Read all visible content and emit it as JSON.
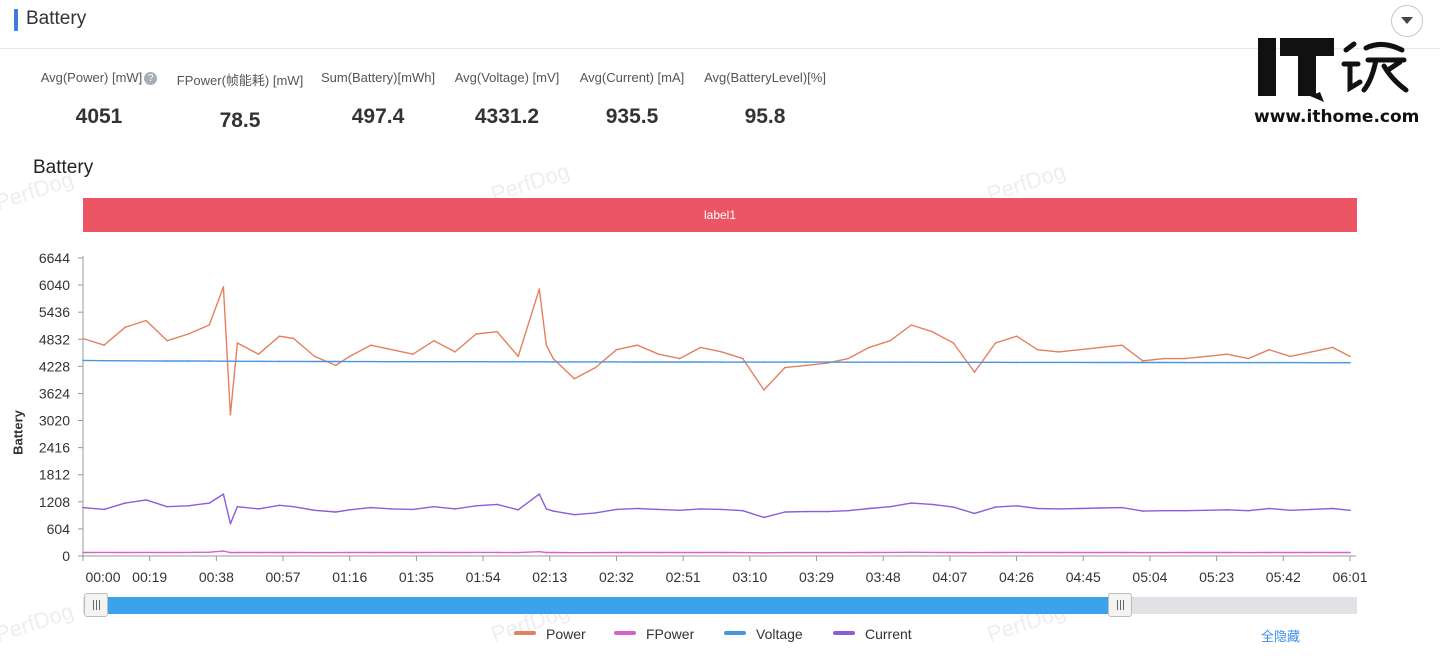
{
  "header": {
    "title": "Battery"
  },
  "stats": [
    {
      "label": "Avg(Power) [mW]",
      "value": "4051",
      "help": "?"
    },
    {
      "label": "FPower(帧能耗) [mW]",
      "value": "78.5"
    },
    {
      "label": "Sum(Battery)[mWh]",
      "value": "497.4"
    },
    {
      "label": "Avg(Voltage) [mV]",
      "value": "4331.2"
    },
    {
      "label": "Avg(Current) [mA]",
      "value": "935.5"
    },
    {
      "label": "Avg(BatteryLevel)[%]",
      "value": "95.8"
    }
  ],
  "logo": {
    "url_text": "www.ithome.com"
  },
  "watermark": "PerfDog",
  "chart_title": "Battery",
  "label_band": "label1",
  "hide_all_label": "全隐藏",
  "colors": {
    "power": "#e4805f",
    "fpower": "#d960c8",
    "voltage": "#4796e2",
    "current": "#8a5ed9",
    "label_band": "#ec5664",
    "slider_fill": "#3aa3ec",
    "accent": "#3d7bd9"
  },
  "chart_data": {
    "type": "line",
    "ylabel": "Battery",
    "ylim": [
      0,
      6644
    ],
    "y_ticks": [
      0,
      604,
      1208,
      1812,
      2416,
      3020,
      3624,
      4228,
      4832,
      5436,
      6040,
      6644
    ],
    "x_ticks": [
      "00:00",
      "00:19",
      "00:38",
      "00:57",
      "01:16",
      "01:35",
      "01:54",
      "02:13",
      "02:32",
      "02:51",
      "03:10",
      "03:29",
      "03:48",
      "04:07",
      "04:26",
      "04:45",
      "05:04",
      "05:23",
      "05:42",
      "06:01"
    ],
    "x_minutes": [
      0,
      6,
      12,
      18,
      24,
      30,
      36,
      40,
      42,
      44,
      50,
      56,
      60,
      66,
      72,
      76,
      82,
      88,
      94,
      100,
      106,
      112,
      118,
      124,
      130,
      132,
      134,
      140,
      146,
      152,
      158,
      164,
      170,
      176,
      182,
      188,
      194,
      200,
      206,
      212,
      218,
      224,
      230,
      236,
      242,
      248,
      254,
      260,
      266,
      272,
      278,
      284,
      290,
      296,
      302,
      308,
      314,
      320,
      326,
      332,
      338,
      344,
      350,
      356,
      361
    ],
    "series": [
      {
        "name": "Power",
        "color_key": "power",
        "values": [
          4850,
          4700,
          5100,
          5250,
          4800,
          4950,
          5150,
          6000,
          3150,
          4750,
          4500,
          4900,
          4850,
          4450,
          4250,
          4450,
          4700,
          4600,
          4500,
          4800,
          4550,
          4950,
          5000,
          4450,
          5950,
          4700,
          4400,
          3950,
          4200,
          4600,
          4700,
          4500,
          4400,
          4650,
          4550,
          4400,
          3700,
          4200,
          4250,
          4300,
          4400,
          4650,
          4800,
          5150,
          5000,
          4750,
          4100,
          4750,
          4900,
          4600,
          4550,
          4600,
          4650,
          4700,
          4350,
          4400,
          4400,
          4450,
          4500,
          4400,
          4600,
          4450,
          4550,
          4650,
          4450
        ]
      },
      {
        "name": "FPower",
        "color_key": "fpower",
        "values": [
          78,
          80,
          78,
          80,
          79,
          80,
          85,
          110,
          75,
          78,
          78,
          79,
          78,
          76,
          76,
          78,
          78,
          78,
          78,
          80,
          79,
          80,
          80,
          76,
          95,
          78,
          78,
          74,
          76,
          78,
          78,
          78,
          77,
          78,
          78,
          76,
          72,
          76,
          76,
          76,
          76,
          78,
          80,
          82,
          80,
          79,
          76,
          78,
          80,
          78,
          78,
          78,
          78,
          79,
          76,
          76,
          77,
          77,
          77,
          76,
          78,
          77,
          78,
          78,
          78
        ]
      },
      {
        "name": "Voltage",
        "color_key": "voltage",
        "values": [
          4360,
          4355,
          4352,
          4350,
          4348,
          4347,
          4345,
          4344,
          4343,
          4342,
          4340,
          4339,
          4338,
          4337,
          4336,
          4335,
          4334,
          4333,
          4332,
          4332,
          4331,
          4331,
          4330,
          4330,
          4329,
          4329,
          4328,
          4328,
          4327,
          4327,
          4326,
          4326,
          4325,
          4325,
          4324,
          4324,
          4323,
          4323,
          4322,
          4322,
          4321,
          4321,
          4320,
          4320,
          4319,
          4319,
          4318,
          4318,
          4317,
          4317,
          4316,
          4316,
          4315,
          4315,
          4314,
          4314,
          4313,
          4313,
          4312,
          4312,
          4311,
          4311,
          4310,
          4310,
          4310
        ]
      },
      {
        "name": "Current",
        "color_key": "current",
        "values": [
          1080,
          1040,
          1180,
          1250,
          1100,
          1120,
          1180,
          1380,
          720,
          1100,
          1050,
          1130,
          1100,
          1020,
          980,
          1030,
          1080,
          1050,
          1040,
          1100,
          1050,
          1120,
          1150,
          1030,
          1380,
          1050,
          1000,
          920,
          960,
          1040,
          1060,
          1040,
          1020,
          1050,
          1040,
          1010,
          860,
          980,
          990,
          990,
          1010,
          1060,
          1100,
          1180,
          1150,
          1090,
          950,
          1090,
          1120,
          1060,
          1050,
          1060,
          1070,
          1080,
          1000,
          1010,
          1010,
          1020,
          1030,
          1010,
          1060,
          1020,
          1040,
          1060,
          1020
        ]
      }
    ]
  }
}
